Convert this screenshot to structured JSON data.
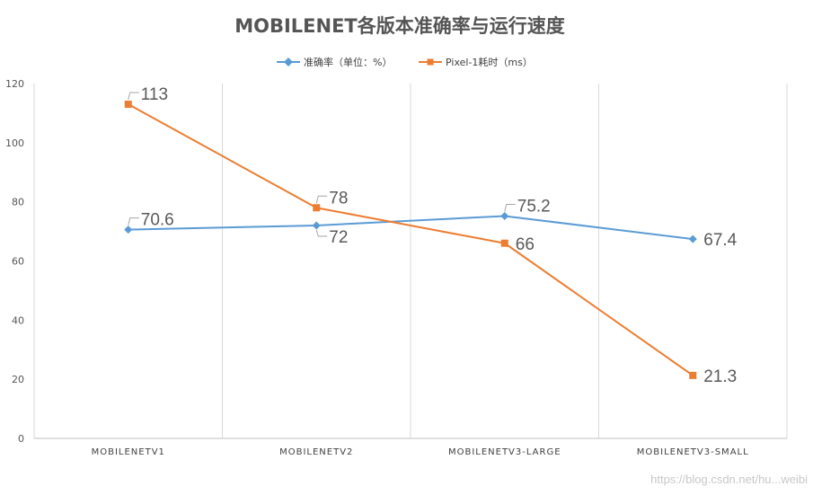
{
  "chart_data": {
    "type": "line",
    "title": "MOBILENET各版本准确率与运行速度",
    "categories": [
      "MOBILENETV1",
      "MOBILENETV2",
      "MOBILENETV3-LARGE",
      "MOBILENETV3-SMALL"
    ],
    "series": [
      {
        "name": "准确率（单位：%）",
        "color": "#5b9bd5",
        "marker": "diamond",
        "values": [
          70.6,
          72,
          75.2,
          67.4
        ],
        "labels": [
          "70.6",
          "72",
          "75.2",
          "67.4"
        ]
      },
      {
        "name": "Pixel-1耗时（ms）",
        "color": "#ed7d31",
        "marker": "square",
        "values": [
          113,
          78,
          66,
          21.3
        ],
        "labels": [
          "113",
          "78",
          "66",
          "21.3"
        ]
      }
    ],
    "ylim": [
      0,
      120
    ],
    "yticks": [
      "0",
      "20",
      "40",
      "60",
      "80",
      "100",
      "120"
    ],
    "xlabel": "",
    "ylabel": "",
    "legend": "top-center",
    "grid": "vertical"
  },
  "watermark": "https://blog.csdn.net/hu...weibi"
}
